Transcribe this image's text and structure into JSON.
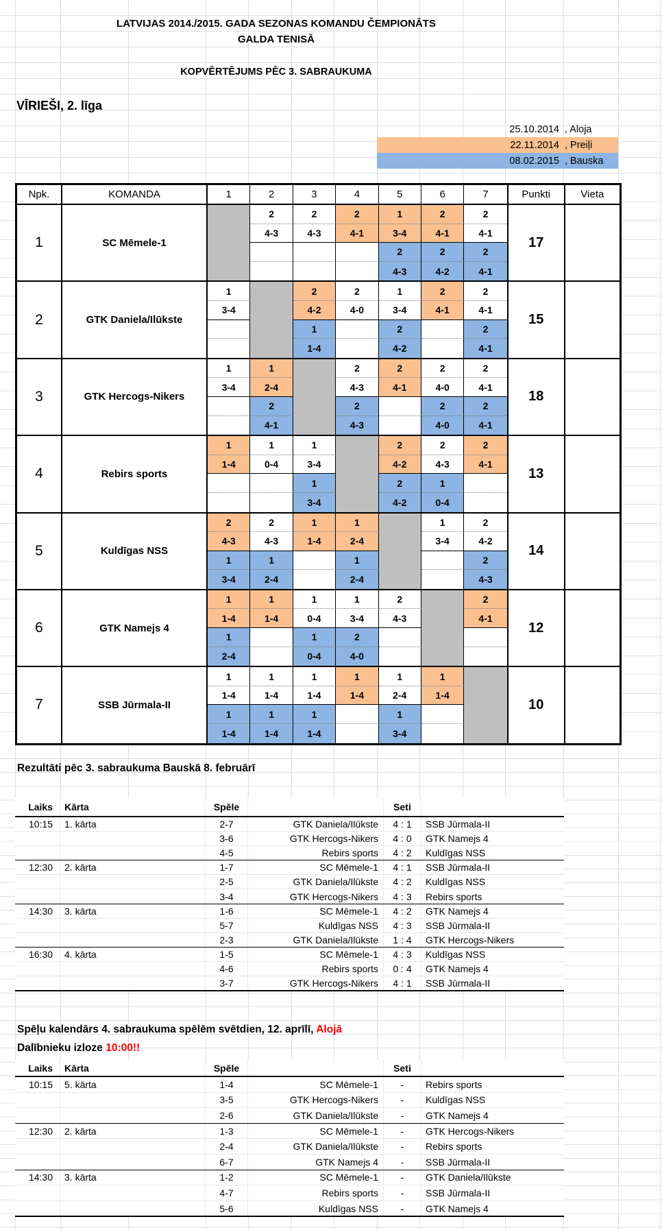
{
  "header": {
    "title_line1": "LATVIJAS 2014./2015. GADA SEZONAS KOMANDU ČEMPIONĀTS",
    "title_line2": "GALDA TENISĀ",
    "subtitle": "KOPVĒRTĒJUMS PĒC 3. SABRAUKUMA",
    "league": "VĪRIEŠI, 2. līga"
  },
  "colors": {
    "aloja": "#FFFFFF",
    "preili": "#FAC090",
    "bauska": "#8DB4E2",
    "self": "#BFBFBF",
    "gridline": "#D9DFE8",
    "highlight_text": "#FF0000"
  },
  "legend": {
    "items": [
      {
        "date": "25.10.2014",
        "city": ", Aloja"
      },
      {
        "date": "22.11.2014",
        "city": ", Preiļi"
      },
      {
        "date": "08.02.2015",
        "city": ", Bauska"
      }
    ]
  },
  "standings": {
    "header": {
      "npk": "Npk.",
      "team": "KOMANDA",
      "cols": [
        "1",
        "2",
        "3",
        "4",
        "5",
        "6",
        "7"
      ],
      "points": "Punkti",
      "place": "Vieta"
    },
    "teams": [
      {
        "npk": "1",
        "name": "SC Mēmele-1",
        "points": "17",
        "place": "",
        "top": [
          {
            "f": "g"
          },
          {
            "p": "2",
            "s": "4-3",
            "f": "w"
          },
          {
            "p": "2",
            "s": "4-3",
            "f": "w"
          },
          {
            "p": "2",
            "s": "4-1",
            "f": "o"
          },
          {
            "p": "1",
            "s": "3-4",
            "f": "o"
          },
          {
            "p": "2",
            "s": "4-1",
            "f": "o"
          },
          {
            "p": "2",
            "s": "4-1",
            "f": "w"
          }
        ],
        "bottom": [
          null,
          null,
          null,
          null,
          {
            "p": "2",
            "s": "4-3",
            "f": "b"
          },
          {
            "p": "2",
            "s": "4-2",
            "f": "b"
          },
          {
            "p": "2",
            "s": "4-1",
            "f": "b"
          }
        ]
      },
      {
        "npk": "2",
        "name": "GTK Daniela/Ilūkste",
        "points": "15",
        "place": "",
        "top": [
          {
            "p": "1",
            "s": "3-4",
            "f": "w"
          },
          {
            "f": "g"
          },
          {
            "p": "2",
            "s": "4-2",
            "f": "o"
          },
          {
            "p": "2",
            "s": "4-0",
            "f": "w"
          },
          {
            "p": "1",
            "s": "3-4",
            "f": "w"
          },
          {
            "p": "2",
            "s": "4-1",
            "f": "o"
          },
          {
            "p": "2",
            "s": "4-1",
            "f": "w"
          }
        ],
        "bottom": [
          null,
          null,
          {
            "p": "1",
            "s": "1-4",
            "f": "b"
          },
          null,
          {
            "p": "2",
            "s": "4-2",
            "f": "b"
          },
          null,
          {
            "p": "2",
            "s": "4-1",
            "f": "b"
          }
        ]
      },
      {
        "npk": "3",
        "name": "GTK Hercogs-Nikers",
        "points": "18",
        "place": "",
        "top": [
          {
            "p": "1",
            "s": "3-4",
            "f": "w"
          },
          {
            "p": "1",
            "s": "2-4",
            "f": "o"
          },
          {
            "f": "g"
          },
          {
            "p": "2",
            "s": "4-3",
            "f": "w"
          },
          {
            "p": "2",
            "s": "4-1",
            "f": "o"
          },
          {
            "p": "2",
            "s": "4-0",
            "f": "w"
          },
          {
            "p": "2",
            "s": "4-1",
            "f": "w"
          }
        ],
        "bottom": [
          null,
          {
            "p": "2",
            "s": "4-1",
            "f": "b"
          },
          null,
          {
            "p": "2",
            "s": "4-3",
            "f": "b"
          },
          null,
          {
            "p": "2",
            "s": "4-0",
            "f": "b"
          },
          {
            "p": "2",
            "s": "4-1",
            "f": "b"
          }
        ]
      },
      {
        "npk": "4",
        "name": "Rebirs sports",
        "points": "13",
        "place": "",
        "top": [
          {
            "p": "1",
            "s": "1-4",
            "f": "o"
          },
          {
            "p": "1",
            "s": "0-4",
            "f": "w"
          },
          {
            "p": "1",
            "s": "3-4",
            "f": "w"
          },
          {
            "f": "g"
          },
          {
            "p": "2",
            "s": "4-2",
            "f": "o"
          },
          {
            "p": "2",
            "s": "4-3",
            "f": "w"
          },
          {
            "p": "2",
            "s": "4-1",
            "f": "o"
          }
        ],
        "bottom": [
          null,
          null,
          {
            "p": "1",
            "s": "3-4",
            "f": "b"
          },
          null,
          {
            "p": "2",
            "s": "4-2",
            "f": "b"
          },
          {
            "p": "1",
            "s": "0-4",
            "f": "b"
          },
          null
        ]
      },
      {
        "npk": "5",
        "name": "Kuldīgas NSS",
        "points": "14",
        "place": "",
        "top": [
          {
            "p": "2",
            "s": "4-3",
            "f": "o"
          },
          {
            "p": "2",
            "s": "4-3",
            "f": "w"
          },
          {
            "p": "1",
            "s": "1-4",
            "f": "o"
          },
          {
            "p": "1",
            "s": "2-4",
            "f": "o"
          },
          {
            "f": "g"
          },
          {
            "p": "1",
            "s": "3-4",
            "f": "w"
          },
          {
            "p": "2",
            "s": "4-2",
            "f": "w"
          }
        ],
        "bottom": [
          {
            "p": "1",
            "s": "3-4",
            "f": "b"
          },
          {
            "p": "1",
            "s": "2-4",
            "f": "b"
          },
          null,
          {
            "p": "1",
            "s": "2-4",
            "f": "b"
          },
          null,
          null,
          {
            "p": "2",
            "s": "4-3",
            "f": "b"
          }
        ]
      },
      {
        "npk": "6",
        "name": "GTK Namejs 4",
        "points": "12",
        "place": "",
        "top": [
          {
            "p": "1",
            "s": "1-4",
            "f": "o"
          },
          {
            "p": "1",
            "s": "1-4",
            "f": "o"
          },
          {
            "p": "1",
            "s": "0-4",
            "f": "w"
          },
          {
            "p": "1",
            "s": "3-4",
            "f": "w"
          },
          {
            "p": "2",
            "s": "4-3",
            "f": "w"
          },
          {
            "f": "g"
          },
          {
            "p": "2",
            "s": "4-1",
            "f": "o"
          }
        ],
        "bottom": [
          {
            "p": "1",
            "s": "2-4",
            "f": "b"
          },
          null,
          {
            "p": "1",
            "s": "0-4",
            "f": "b"
          },
          {
            "p": "2",
            "s": "4-0",
            "f": "b"
          },
          null,
          null,
          null
        ]
      },
      {
        "npk": "7",
        "name": "SSB Jūrmala-II",
        "points": "10",
        "place": "",
        "top": [
          {
            "p": "1",
            "s": "1-4",
            "f": "w"
          },
          {
            "p": "1",
            "s": "1-4",
            "f": "w"
          },
          {
            "p": "1",
            "s": "1-4",
            "f": "w"
          },
          {
            "p": "1",
            "s": "1-4",
            "f": "o"
          },
          {
            "p": "1",
            "s": "2-4",
            "f": "w"
          },
          {
            "p": "1",
            "s": "1-4",
            "f": "o"
          },
          {
            "f": "g"
          }
        ],
        "bottom": [
          {
            "p": "1",
            "s": "1-4",
            "f": "b"
          },
          {
            "p": "1",
            "s": "1-4",
            "f": "b"
          },
          {
            "p": "1",
            "s": "1-4",
            "f": "b"
          },
          null,
          {
            "p": "1",
            "s": "3-4",
            "f": "b"
          },
          null,
          null
        ]
      }
    ]
  },
  "results": {
    "title": "Rezultāti pēc 3. sabraukuma Bauskā 8. februārī",
    "headers": {
      "time": "Laiks",
      "round": "Kārta",
      "game": "Spēle",
      "sets": "Seti"
    },
    "groups": [
      {
        "time": "10:15",
        "round": "1. kārta",
        "matches": [
          {
            "code": "2-7",
            "home": "GTK Daniela/Ilūkste",
            "sets": "4 : 1",
            "away": "SSB Jūrmala-II"
          },
          {
            "code": "3-6",
            "home": "GTK Hercogs-Nikers",
            "sets": "4 : 0",
            "away": "GTK Namejs 4"
          },
          {
            "code": "4-5",
            "home": "Rebirs sports",
            "sets": "4 : 2",
            "away": "Kuldīgas NSS"
          }
        ]
      },
      {
        "time": "12:30",
        "round": "2. kārta",
        "matches": [
          {
            "code": "1-7",
            "home": "SC Mēmele-1",
            "sets": "4 : 1",
            "away": "SSB Jūrmala-II"
          },
          {
            "code": "2-5",
            "home": "GTK Daniela/Ilūkste",
            "sets": "4 : 2",
            "away": "Kuldīgas NSS"
          },
          {
            "code": "3-4",
            "home": "GTK Hercogs-Nikers",
            "sets": "4 : 3",
            "away": "Rebirs sports"
          }
        ]
      },
      {
        "time": "14:30",
        "round": "3. kārta",
        "matches": [
          {
            "code": "1-6",
            "home": "SC Mēmele-1",
            "sets": "4 : 2",
            "away": "GTK Namejs 4"
          },
          {
            "code": "5-7",
            "home": "Kuldīgas NSS",
            "sets": "4 : 3",
            "away": "SSB Jūrmala-II"
          },
          {
            "code": "2-3",
            "home": "GTK Daniela/Ilūkste",
            "sets": "1 : 4",
            "away": "GTK Hercogs-Nikers"
          }
        ]
      },
      {
        "time": "16:30",
        "round": "4. kārta",
        "matches": [
          {
            "code": "1-5",
            "home": "SC Mēmele-1",
            "sets": "4 : 3",
            "away": "Kuldīgas NSS"
          },
          {
            "code": "4-6",
            "home": "Rebirs sports",
            "sets": "0 : 4",
            "away": "GTK Namejs 4"
          },
          {
            "code": "3-7",
            "home": "GTK Hercogs-Nikers",
            "sets": "4 : 1",
            "away": "SSB Jūrmala-II"
          }
        ]
      }
    ]
  },
  "schedule": {
    "title_prefix": "Spēļu kalendārs 4. sabraukuma spēlēm svētdien, 12. aprīlī, ",
    "title_highlight": "Alojā",
    "subtitle_prefix": "Dalībnieku izloze ",
    "subtitle_highlight": "10:00!!",
    "headers": {
      "time": "Laiks",
      "round": "Kārta",
      "game": "Spēle",
      "sets": "Seti"
    },
    "groups": [
      {
        "time": "10:15",
        "round": "5. kārta",
        "matches": [
          {
            "code": "1-4",
            "home": "SC Mēmele-1",
            "sets": "-",
            "away": "Rebirs sports"
          },
          {
            "code": "3-5",
            "home": "GTK Hercogs-Nikers",
            "sets": "-",
            "away": "Kuldīgas NSS"
          },
          {
            "code": "2-6",
            "home": "GTK Daniela/Ilūkste",
            "sets": "-",
            "away": "GTK Namejs 4"
          }
        ]
      },
      {
        "time": "12:30",
        "round": "2. kārta",
        "matches": [
          {
            "code": "1-3",
            "home": "SC Mēmele-1",
            "sets": "-",
            "away": "GTK Hercogs-Nikers"
          },
          {
            "code": "2-4",
            "home": "GTK Daniela/Ilūkste",
            "sets": "-",
            "away": "Rebirs sports"
          },
          {
            "code": "6-7",
            "home": "GTK Namejs 4",
            "sets": "-",
            "away": "SSB Jūrmala-II"
          }
        ]
      },
      {
        "time": "14:30",
        "round": "3. kārta",
        "matches": [
          {
            "code": "1-2",
            "home": "SC Mēmele-1",
            "sets": "-",
            "away": "GTK Daniela/Ilūkste"
          },
          {
            "code": "4-7",
            "home": "Rebirs sports",
            "sets": "-",
            "away": "SSB Jūrmala-II"
          },
          {
            "code": "5-6",
            "home": "Kuldīgas NSS",
            "sets": "-",
            "away": "GTK Namejs 4"
          }
        ]
      }
    ]
  }
}
